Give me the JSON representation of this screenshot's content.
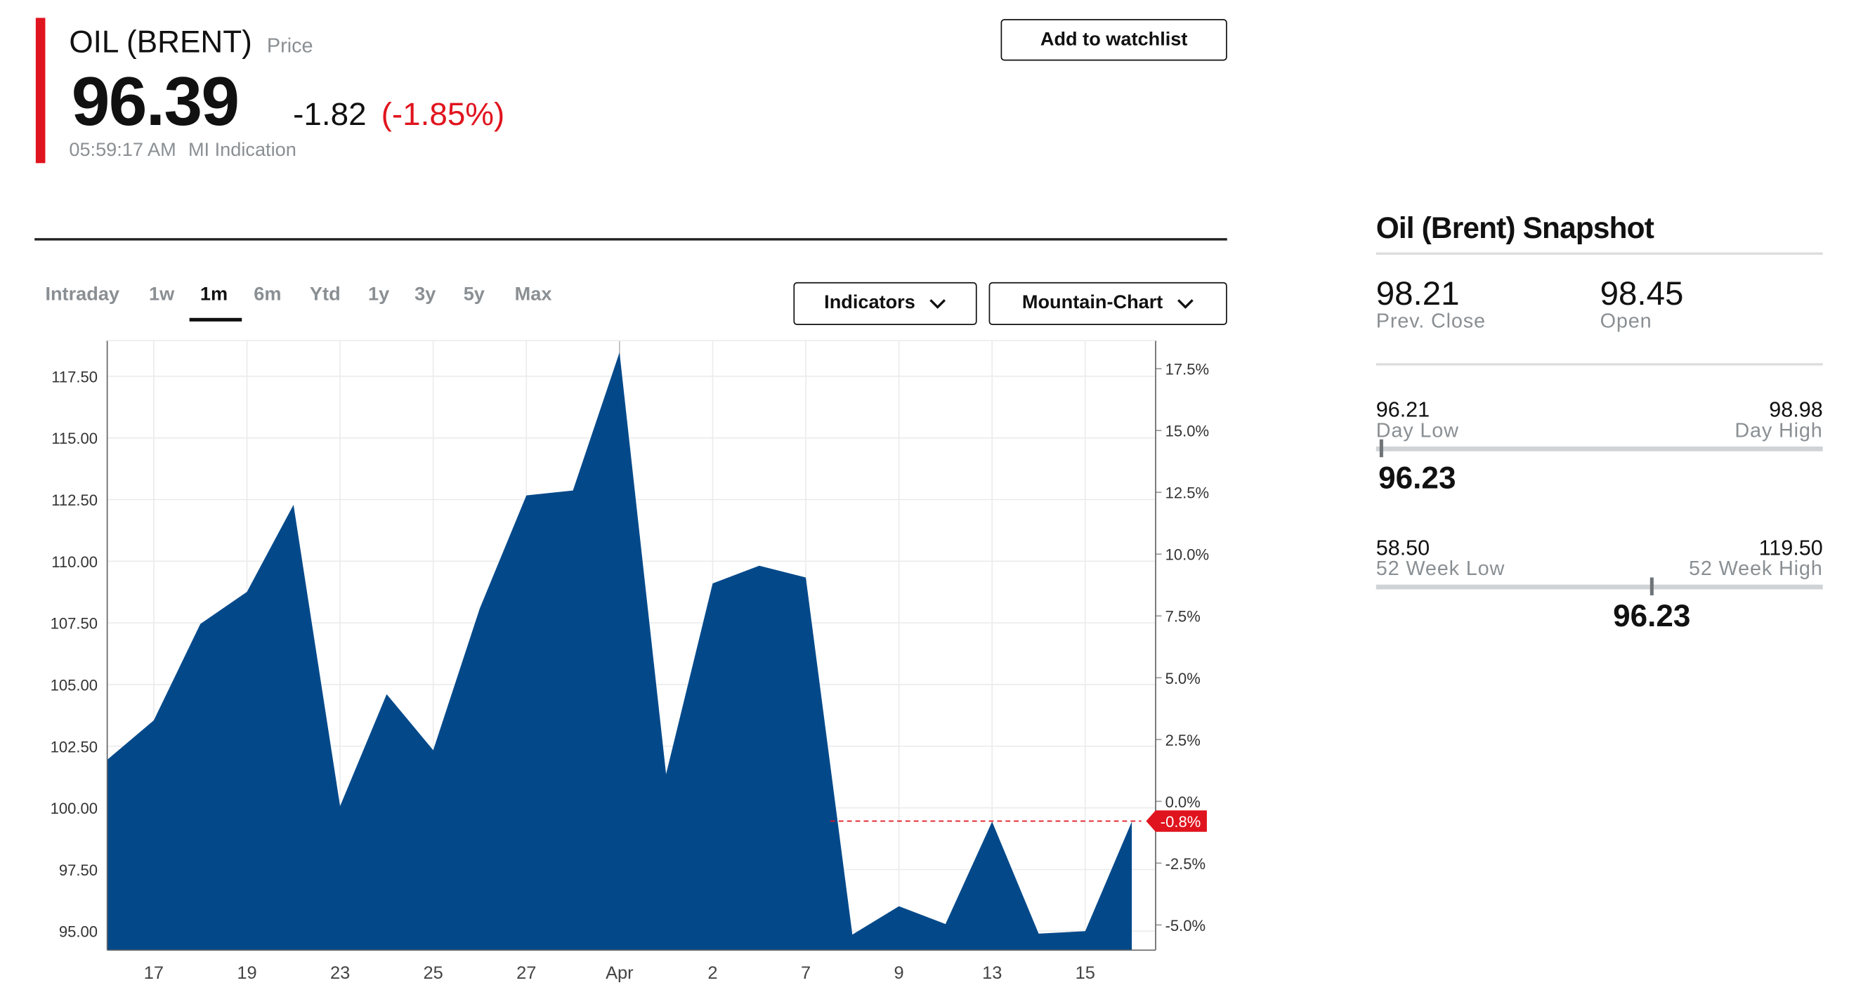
{
  "header": {
    "title": "OIL (BRENT)",
    "subtitle": "Price",
    "price": "96.39",
    "change": "-1.82",
    "change_pct": "(-1.85%)",
    "time": "05:59:17 AM",
    "source": "MI Indication",
    "watchlist_button": "Add to watchlist"
  },
  "tabs": {
    "items": [
      "Intraday",
      "1w",
      "1m",
      "6m",
      "Ytd",
      "1y",
      "3y",
      "5y",
      "Max"
    ],
    "selected": "1m"
  },
  "dropdowns": [
    "Indicators",
    "Mountain-Chart"
  ],
  "chart_data": {
    "type": "area",
    "color": "#03498a",
    "grid": true,
    "categories": [
      null,
      "17",
      null,
      "19",
      null,
      "23",
      null,
      "25",
      null,
      "27",
      null,
      "Apr",
      null,
      "2",
      null,
      "7",
      null,
      "9",
      null,
      "13",
      null,
      "15",
      null
    ],
    "values": [
      101.95,
      103.55,
      107.46,
      108.76,
      112.29,
      100.07,
      104.61,
      102.34,
      108.09,
      112.67,
      112.87,
      118.47,
      101.37,
      109.1,
      109.82,
      109.34,
      94.86,
      96.01,
      95.29,
      99.44,
      94.9,
      95.0,
      99.44
    ],
    "ylim": [
      94.23,
      118.95
    ],
    "yticks": [
      {
        "value": 95,
        "label": "95.00"
      },
      {
        "value": 97.5,
        "label": "97.50"
      },
      {
        "value": 100,
        "label": "100.00"
      },
      {
        "value": 102.5,
        "label": "102.50"
      },
      {
        "value": 105,
        "label": "105.00"
      },
      {
        "value": 107.5,
        "label": "107.50"
      },
      {
        "value": 110,
        "label": "110.00"
      },
      {
        "value": 112.5,
        "label": "112.50"
      },
      {
        "value": 115,
        "label": "115.00"
      },
      {
        "value": 117.5,
        "label": "117.50"
      }
    ],
    "y2lim": [
      -6.02,
      18.64
    ],
    "y2ticks": [
      {
        "value": -5,
        "label": "-5.0%"
      },
      {
        "value": -2.5,
        "label": "-2.5%"
      },
      {
        "value": 0,
        "label": "0.0%"
      },
      {
        "value": 2.5,
        "label": "2.5%"
      },
      {
        "value": 5,
        "label": "5.0%"
      },
      {
        "value": 7.5,
        "label": "7.5%"
      },
      {
        "value": 10,
        "label": "10.0%"
      },
      {
        "value": 12.5,
        "label": "12.5%"
      },
      {
        "value": 15,
        "label": "15.0%"
      },
      {
        "value": 17.5,
        "label": "17.5%"
      }
    ],
    "annotations": [
      {
        "value": -0.8,
        "label": "-0.8%",
        "axis": "y2",
        "color": "#e0141e"
      }
    ]
  },
  "snapshot": {
    "title": "Oil (Brent) Snapshot",
    "prev_close": {
      "value": "98.21",
      "label": "Prev. Close"
    },
    "open": {
      "value": "98.45",
      "label": "Open"
    },
    "day_range": {
      "low": {
        "value": 96.21,
        "label": "96.21"
      },
      "low_label": "Day Low",
      "high": {
        "value": 98.98,
        "label": "98.98"
      },
      "high_label": "Day High",
      "current": {
        "value": 96.23,
        "label": "96.23"
      }
    },
    "week52_range": {
      "low": {
        "value": 58.5,
        "label": "58.50"
      },
      "low_label": "52 Week Low",
      "high": {
        "value": 119.5,
        "label": "119.50"
      },
      "high_label": "52 Week High",
      "current": {
        "value": 96.23,
        "label": "96.23"
      }
    }
  }
}
